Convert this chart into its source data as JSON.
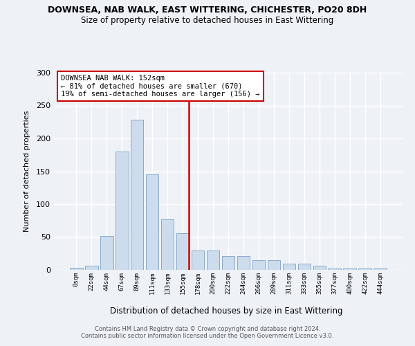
{
  "title": "DOWNSEA, NAB WALK, EAST WITTERING, CHICHESTER, PO20 8DH",
  "subtitle": "Size of property relative to detached houses in East Wittering",
  "xlabel": "Distribution of detached houses by size in East Wittering",
  "ylabel": "Number of detached properties",
  "bin_labels": [
    "0sqm",
    "22sqm",
    "44sqm",
    "67sqm",
    "89sqm",
    "111sqm",
    "133sqm",
    "155sqm",
    "178sqm",
    "200sqm",
    "222sqm",
    "244sqm",
    "266sqm",
    "289sqm",
    "311sqm",
    "333sqm",
    "355sqm",
    "377sqm",
    "400sqm",
    "422sqm",
    "444sqm"
  ],
  "bar_values": [
    3,
    6,
    52,
    180,
    228,
    145,
    77,
    56,
    30,
    30,
    21,
    21,
    15,
    15,
    10,
    10,
    6,
    2,
    2,
    2,
    2
  ],
  "bar_color": "#ccdcec",
  "bar_edge_color": "#88aacc",
  "vline_color": "#cc0000",
  "vline_x_data": 7.42,
  "annotation_text": "DOWNSEA NAB WALK: 152sqm\n← 81% of detached houses are smaller (670)\n19% of semi-detached houses are larger (156) →",
  "annotation_box_color": "#ffffff",
  "annotation_box_edge": "#cc0000",
  "ylim": [
    0,
    300
  ],
  "yticks": [
    0,
    50,
    100,
    150,
    200,
    250,
    300
  ],
  "footer_line1": "Contains HM Land Registry data © Crown copyright and database right 2024.",
  "footer_line2": "Contains public sector information licensed under the Open Government Licence v3.0.",
  "bg_color": "#eef2f7",
  "grid_color": "#ffffff"
}
